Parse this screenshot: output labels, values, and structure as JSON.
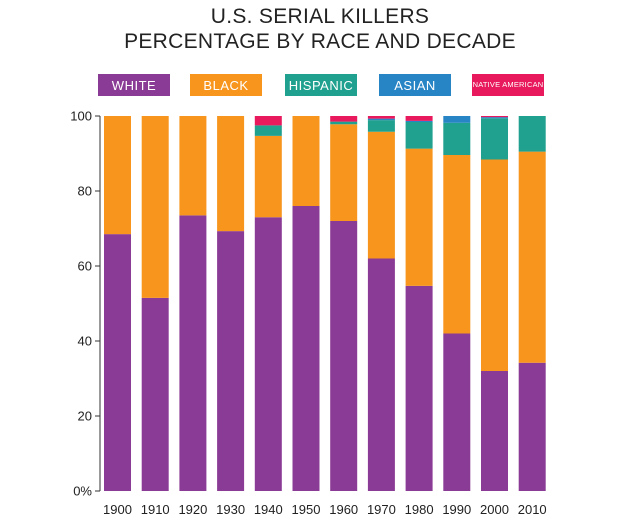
{
  "chart_data": {
    "type": "bar",
    "stacked": true,
    "title": "U.S. SERIAL KILLERS\nPERCENTAGE BY RACE AND DECADE",
    "title_lines": [
      "U.S. SERIAL KILLERS",
      "PERCENTAGE BY RACE AND DECADE"
    ],
    "xlabel": "",
    "ylabel": "",
    "ylim": [
      0,
      100
    ],
    "y_ticks": [
      0,
      20,
      40,
      60,
      80,
      100
    ],
    "y_tick_labels": [
      "0%",
      "20",
      "40",
      "60",
      "80",
      "100"
    ],
    "legend_position": "top",
    "categories": [
      "1900",
      "1910",
      "1920",
      "1930",
      "1940",
      "1950",
      "1960",
      "1970",
      "1980",
      "1990",
      "2000",
      "2010"
    ],
    "series": [
      {
        "name": "WHITE",
        "color": "#8a3b95",
        "values": [
          68.5,
          51.5,
          73.5,
          69.3,
          73.0,
          76.0,
          72.0,
          62.0,
          54.7,
          42.0,
          32.0,
          34.2
        ]
      },
      {
        "name": "BLACK",
        "color": "#f7951d",
        "values": [
          31.5,
          48.5,
          26.5,
          30.7,
          21.7,
          24.0,
          25.8,
          33.8,
          36.6,
          47.6,
          56.4,
          56.3
        ]
      },
      {
        "name": "HISPANIC",
        "color": "#20a08f",
        "values": [
          0,
          0,
          0,
          0,
          2.8,
          0,
          0.7,
          3.1,
          7.1,
          8.6,
          11.0,
          9.5
        ]
      },
      {
        "name": "ASIAN",
        "color": "#2784c5",
        "values": [
          0,
          0,
          0,
          0,
          0,
          0,
          0,
          0.4,
          0.3,
          1.8,
          0.3,
          0
        ]
      },
      {
        "name": "NATIVE AMERICAN",
        "color": "#e8195c",
        "values": [
          0,
          0,
          0,
          0,
          2.5,
          0,
          1.5,
          0.7,
          1.3,
          0,
          0.3,
          0
        ]
      }
    ]
  }
}
